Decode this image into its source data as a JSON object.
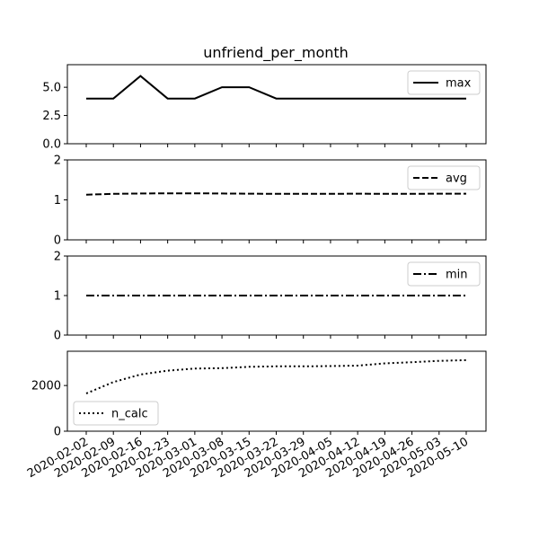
{
  "chart_data": {
    "type": "line",
    "title": "unfriend_per_month",
    "x": [
      "2020-02-02",
      "2020-02-09",
      "2020-02-16",
      "2020-02-23",
      "2020-03-01",
      "2020-03-08",
      "2020-03-15",
      "2020-03-22",
      "2020-03-29",
      "2020-04-05",
      "2020-04-12",
      "2020-04-19",
      "2020-04-26",
      "2020-05-03",
      "2020-05-10"
    ],
    "panels": [
      {
        "name": "max",
        "line_style": "solid",
        "ylim": [
          0,
          7
        ],
        "yticks": [
          0,
          2.5,
          5
        ],
        "ytick_labels": [
          "0.0",
          "2.5",
          "5.0"
        ],
        "legend_loc": "upper-right",
        "values": [
          4,
          4,
          6,
          4,
          4,
          5,
          5,
          4,
          4,
          4,
          4,
          4,
          4,
          4,
          4
        ]
      },
      {
        "name": "avg",
        "line_style": "dashed",
        "ylim": [
          0,
          2
        ],
        "yticks": [
          0,
          1,
          2
        ],
        "ytick_labels": [
          "0",
          "1",
          "2"
        ],
        "legend_loc": "upper-right",
        "values": [
          1.13,
          1.15,
          1.16,
          1.165,
          1.165,
          1.16,
          1.155,
          1.15,
          1.15,
          1.15,
          1.155,
          1.15,
          1.15,
          1.155,
          1.155
        ]
      },
      {
        "name": "min",
        "line_style": "dashdot",
        "ylim": [
          0,
          2
        ],
        "yticks": [
          0,
          1,
          2
        ],
        "ytick_labels": [
          "0",
          "1",
          "2"
        ],
        "legend_loc": "upper-right",
        "values": [
          1,
          1,
          1,
          1,
          1,
          1,
          1,
          1,
          1,
          1,
          1,
          1,
          1,
          1,
          1
        ]
      },
      {
        "name": "n_calc",
        "line_style": "dotted",
        "ylim": [
          0,
          3500
        ],
        "yticks": [
          0,
          2000
        ],
        "ytick_labels": [
          "0",
          "2000"
        ],
        "legend_loc": "lower-left",
        "values": [
          1650,
          2150,
          2480,
          2650,
          2740,
          2760,
          2820,
          2840,
          2840,
          2850,
          2870,
          2970,
          3020,
          3080,
          3110
        ]
      }
    ],
    "grid": false
  }
}
